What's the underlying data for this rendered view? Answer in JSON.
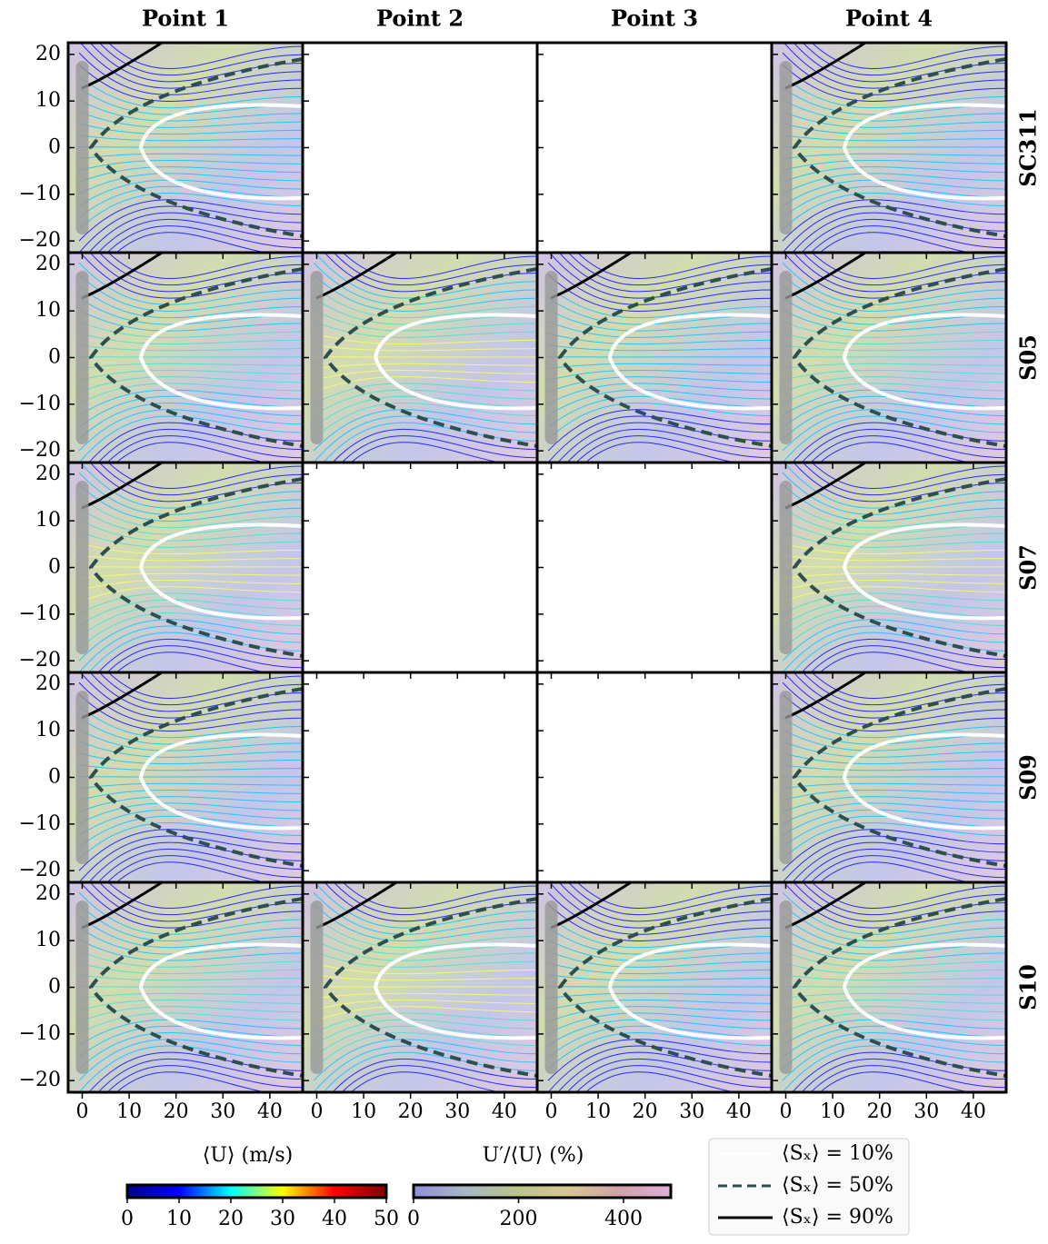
{
  "columns": [
    "Point 1",
    "Point 2",
    "Point 3",
    "Point 4"
  ],
  "rows": [
    "SC311",
    "S05",
    "S07",
    "S09",
    "S10"
  ],
  "axes": {
    "xlim": [
      -3,
      47
    ],
    "xticks": [
      0,
      10,
      20,
      30,
      40
    ],
    "ylim": [
      -22.5,
      22.5
    ],
    "yticks": [
      {
        "value": -20,
        "label": "−20"
      },
      {
        "value": -10,
        "label": "−10"
      },
      0,
      10,
      20
    ]
  },
  "colorbars": [
    {
      "label": "⟨U⟩ (m/s)",
      "lim": [
        0,
        50
      ],
      "ticks": [
        0,
        10,
        20,
        30,
        40,
        50
      ],
      "colors": [
        "#00008b",
        "#0000ff",
        "#00ffff",
        "#ffff00",
        "#ff0000",
        "#800000"
      ]
    },
    {
      "label": "U′/⟨U⟩ (%)",
      "lim": [
        0,
        490
      ],
      "ticks": [
        0,
        200,
        400
      ],
      "colors": [
        "#8f8fd8",
        "#a7b7c7",
        "#b9c48a",
        "#d8c890",
        "#d2a0a8",
        "#e0b0d8"
      ]
    }
  ],
  "legend": [
    {
      "label": "⟨Sₓ⟩ = 10%",
      "color": "#ffffff",
      "dash": "none"
    },
    {
      "label": "⟨Sₓ⟩ = 50%",
      "color": "#2f4f4f",
      "dash": "10,6"
    },
    {
      "label": "⟨Sₓ⟩ = 90%",
      "color": "#000000",
      "dash": "none"
    }
  ]
}
